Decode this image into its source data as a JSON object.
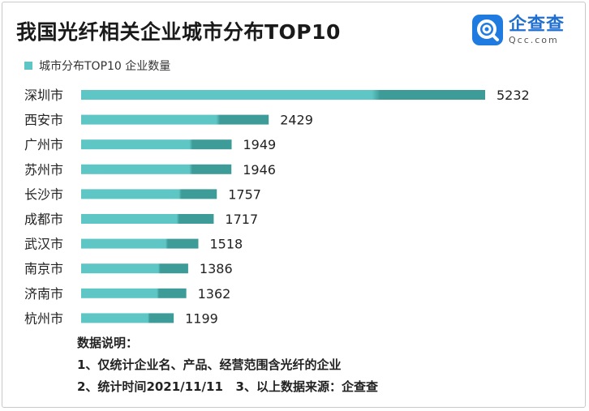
{
  "header": {
    "title": "我国光纤相关企业城市分布TOP10",
    "legend_label": "城市分布TOP10 企业数量"
  },
  "logo": {
    "cn": "企查查",
    "en": "Qcc.com",
    "icon": "qcc-logo-icon"
  },
  "colors": {
    "bar_light": "#5ec6c4",
    "bar_dark": "#3e9c98",
    "logo_blue": "#1f7be0"
  },
  "chart_data": {
    "type": "bar",
    "orientation": "horizontal",
    "title": "我国光纤相关企业城市分布TOP10",
    "categories": [
      "深圳市",
      "西安市",
      "广州市",
      "苏州市",
      "长沙市",
      "成都市",
      "武汉市",
      "南京市",
      "济南市",
      "杭州市"
    ],
    "series": [
      {
        "name": "城市分布TOP10 企业数量",
        "values": [
          5232,
          2429,
          1949,
          1946,
          1757,
          1717,
          1518,
          1386,
          1362,
          1199
        ]
      }
    ],
    "xlim": [
      0,
      5232
    ],
    "grid": false,
    "legend": "top-left"
  },
  "notes": {
    "heading": "数据说明：",
    "line1": "1、仅统计企业名、产品、经营范围含光纤的企业",
    "line2": "2、统计时间2021/11/11   3、以上数据来源：企查查"
  }
}
